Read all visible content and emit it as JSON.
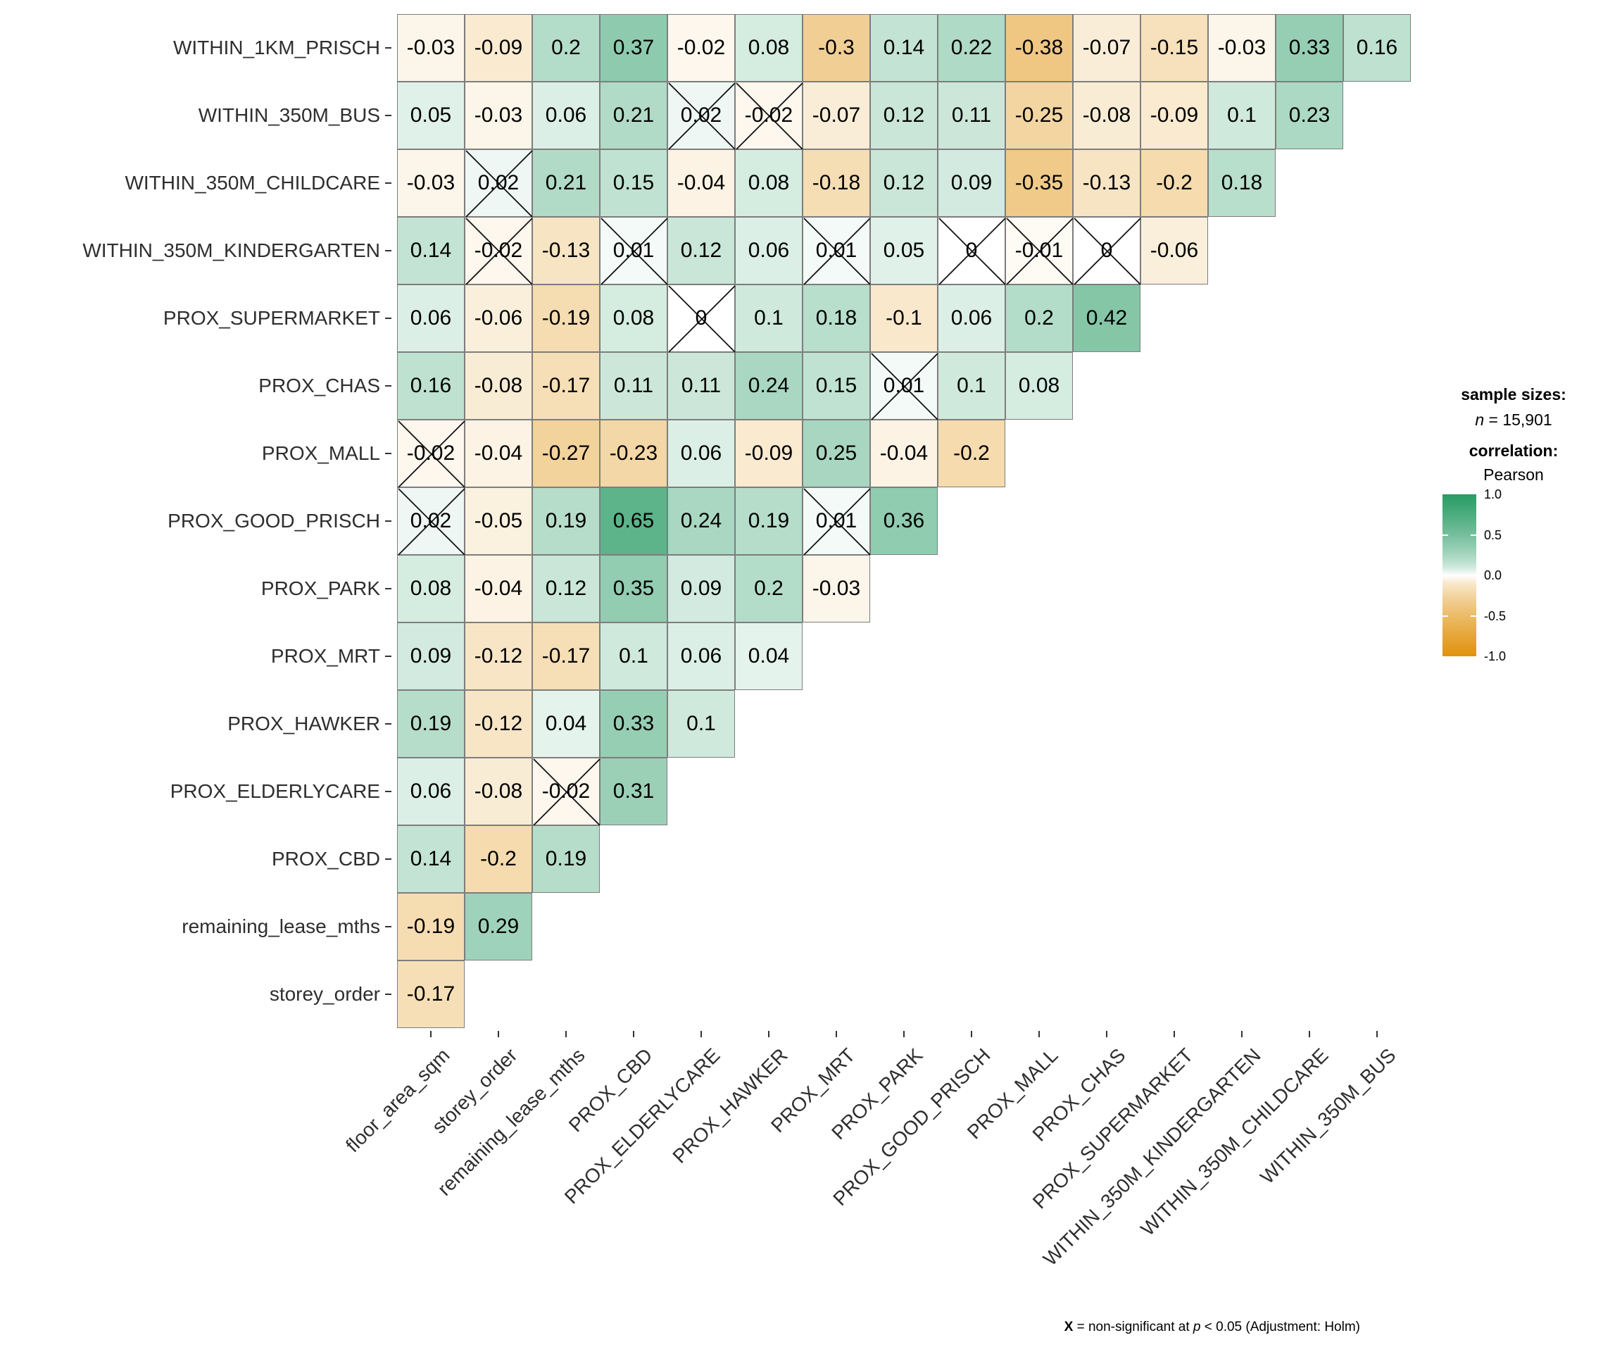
{
  "chart_data": {
    "type": "heatmap",
    "title": "",
    "correlation_method": "Pearson",
    "x_categories": [
      "floor_area_sqm",
      "storey_order",
      "remaining_lease_mths",
      "PROX_CBD",
      "PROX_ELDERLYCARE",
      "PROX_HAWKER",
      "PROX_MRT",
      "PROX_PARK",
      "PROX_GOOD_PRISCH",
      "PROX_MALL",
      "PROX_CHAS",
      "PROX_SUPERMARKET",
      "WITHIN_350M_KINDERGARTEN",
      "WITHIN_350M_CHILDCARE",
      "WITHIN_350M_BUS"
    ],
    "rows": [
      {
        "label": "WITHIN_1KM_PRISCH",
        "values": [
          "-0.03",
          "-0.09",
          "0.2",
          "0.37",
          "-0.02",
          "0.08",
          "-0.3",
          "0.14",
          "0.22",
          "-0.38",
          "-0.07",
          "-0.15",
          "-0.03",
          "0.33",
          "0.16"
        ],
        "ns": []
      },
      {
        "label": "WITHIN_350M_BUS",
        "values": [
          "0.05",
          "-0.03",
          "0.06",
          "0.21",
          "0.02",
          "-0.02",
          "-0.07",
          "0.12",
          "0.11",
          "-0.25",
          "-0.08",
          "-0.09",
          "0.1",
          "0.23"
        ],
        "ns": [
          4,
          5
        ]
      },
      {
        "label": "WITHIN_350M_CHILDCARE",
        "values": [
          "-0.03",
          "0.02",
          "0.21",
          "0.15",
          "-0.04",
          "0.08",
          "-0.18",
          "0.12",
          "0.09",
          "-0.35",
          "-0.13",
          "-0.2",
          "0.18"
        ],
        "ns": [
          1
        ]
      },
      {
        "label": "WITHIN_350M_KINDERGARTEN",
        "values": [
          "0.14",
          "-0.02",
          "-0.13",
          "0.01",
          "0.12",
          "0.06",
          "0.01",
          "0.05",
          "0",
          "-0.01",
          "0",
          "-0.06"
        ],
        "ns": [
          1,
          3,
          6,
          8,
          9,
          10
        ]
      },
      {
        "label": "PROX_SUPERMARKET",
        "values": [
          "0.06",
          "-0.06",
          "-0.19",
          "0.08",
          "0",
          "0.1",
          "0.18",
          "-0.1",
          "0.06",
          "0.2",
          "0.42"
        ],
        "ns": [
          4
        ]
      },
      {
        "label": "PROX_CHAS",
        "values": [
          "0.16",
          "-0.08",
          "-0.17",
          "0.11",
          "0.11",
          "0.24",
          "0.15",
          "0.01",
          "0.1",
          "0.08"
        ],
        "ns": [
          7
        ]
      },
      {
        "label": "PROX_MALL",
        "values": [
          "-0.02",
          "-0.04",
          "-0.27",
          "-0.23",
          "0.06",
          "-0.09",
          "0.25",
          "-0.04",
          "-0.2"
        ],
        "ns": [
          0
        ]
      },
      {
        "label": "PROX_GOOD_PRISCH",
        "values": [
          "0.02",
          "-0.05",
          "0.19",
          "0.65",
          "0.24",
          "0.19",
          "0.01",
          "0.36"
        ],
        "ns": [
          0,
          6
        ]
      },
      {
        "label": "PROX_PARK",
        "values": [
          "0.08",
          "-0.04",
          "0.12",
          "0.35",
          "0.09",
          "0.2",
          "-0.03"
        ],
        "ns": []
      },
      {
        "label": "PROX_MRT",
        "values": [
          "0.09",
          "-0.12",
          "-0.17",
          "0.1",
          "0.06",
          "0.04"
        ],
        "ns": []
      },
      {
        "label": "PROX_HAWKER",
        "values": [
          "0.19",
          "-0.12",
          "0.04",
          "0.33",
          "0.1"
        ],
        "ns": []
      },
      {
        "label": "PROX_ELDERLYCARE",
        "values": [
          "0.06",
          "-0.08",
          "-0.02",
          "0.31"
        ],
        "ns": [
          2
        ]
      },
      {
        "label": "PROX_CBD",
        "values": [
          "0.14",
          "-0.2",
          "0.19"
        ],
        "ns": []
      },
      {
        "label": "remaining_lease_mths",
        "values": [
          "-0.19",
          "0.29"
        ],
        "ns": []
      },
      {
        "label": "storey_order",
        "values": [
          "-0.17"
        ],
        "ns": []
      }
    ],
    "legend": {
      "sample_sizes_label": "sample sizes:",
      "n_prefix": "n",
      "n_value": " = 15,901",
      "correlation_label": "correlation:",
      "method": "Pearson",
      "scale_ticks": [
        "1.0",
        "0.5",
        "0.0",
        "-0.5",
        "-1.0"
      ],
      "scale_range": [
        1,
        -1
      ]
    },
    "caption": {
      "x_symbol": "X",
      "text_mid": " = non-significant at ",
      "p_symbol": "p",
      "text_end": " < 0.05 (Adjustment: Holm)"
    },
    "colors": {
      "positive_end": "#289B64",
      "negative_end": "#E0930D",
      "midpoint": "#FFFFFF",
      "cell_border": "#7D7D7D",
      "axis_text": "#2E2E2E",
      "value_text": "#000000",
      "ns_mark": "#111111"
    }
  }
}
